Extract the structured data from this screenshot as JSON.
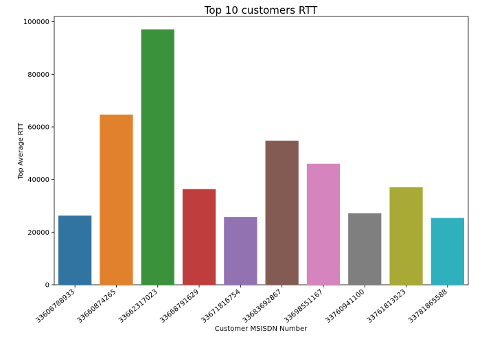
{
  "chart_data": {
    "type": "bar",
    "title": "Top 10 customers RTT",
    "xlabel": "Customer MSISDN Number",
    "ylabel": "Top Average RTT",
    "ylim": [
      0,
      102000
    ],
    "yticks": [
      0,
      20000,
      40000,
      60000,
      80000,
      100000
    ],
    "grid": false,
    "categories": [
      "33606788933",
      "33660874265",
      "33662317023",
      "33668791629",
      "33671816754",
      "33683692867",
      "33698551167",
      "33760941100",
      "33761813523",
      "33781865588"
    ],
    "values": [
      26300,
      64700,
      97100,
      36400,
      25800,
      54800,
      46000,
      27200,
      37100,
      25400
    ],
    "colors": [
      "#3274a1",
      "#e1812c",
      "#3a923a",
      "#c03d3e",
      "#9372b2",
      "#845b53",
      "#d684bd",
      "#7f7f7f",
      "#a9aa35",
      "#2fb1bd"
    ]
  }
}
